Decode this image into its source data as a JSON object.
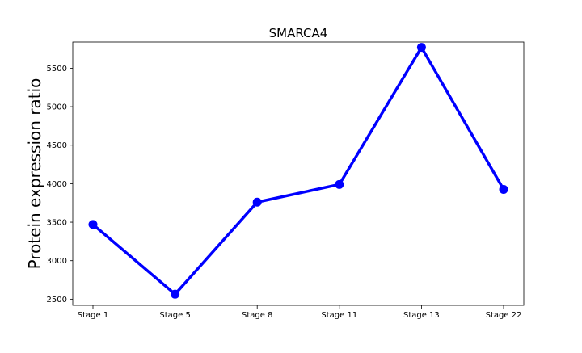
{
  "chart_data": {
    "type": "line",
    "title": "SMARCA4",
    "xlabel": "",
    "ylabel": "Protein expression ratio",
    "categories": [
      "Stage 1",
      "Stage 5",
      "Stage 8",
      "Stage 11",
      "Stage 13",
      "Stage 22"
    ],
    "series": [
      {
        "values": [
          3470,
          2565,
          3760,
          3990,
          5770,
          3925
        ],
        "color": "#0000ff"
      }
    ],
    "ylim": [
      2420,
      5840
    ],
    "yticks": [
      2500,
      3000,
      3500,
      4000,
      4500,
      5000,
      5500
    ],
    "grid": false,
    "legend": "none"
  }
}
